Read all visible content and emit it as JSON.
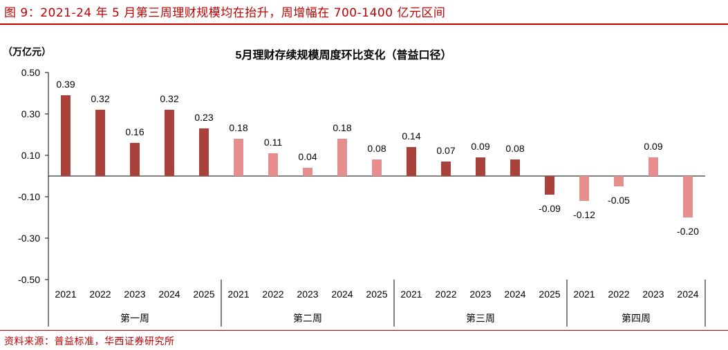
{
  "figure": {
    "title": "图 9：2021-24 年 5 月第三周理财规模均在抬升，周增幅在 700-1400 亿元区间",
    "source": "资料来源：普益标准，华西证券研究所"
  },
  "chart_data": {
    "type": "bar",
    "title": "5月理财存续规模周度环比变化（普益口径）",
    "unit": "（万亿元）",
    "xlabel": "",
    "ylabel": "",
    "ylim": [
      -0.5,
      0.5
    ],
    "yticks": [
      "0.50",
      "0.30",
      "0.10",
      "-0.10",
      "-0.30",
      "-0.50"
    ],
    "ytick_values": [
      0.5,
      0.3,
      0.1,
      -0.1,
      -0.3,
      -0.5
    ],
    "grid": false,
    "legend": "none",
    "colors": {
      "dark": "#a8423a",
      "light": "#e68e8e"
    },
    "groups": [
      {
        "label": "第一周",
        "color": "dark",
        "categories": [
          "2021",
          "2022",
          "2023",
          "2024",
          "2025"
        ],
        "values": [
          0.39,
          0.32,
          0.16,
          0.32,
          0.23
        ],
        "labels": [
          "0.39",
          "0.32",
          "0.16",
          "0.32",
          "0.23"
        ]
      },
      {
        "label": "第二周",
        "color": "light",
        "categories": [
          "2021",
          "2022",
          "2023",
          "2024",
          "2025"
        ],
        "values": [
          0.18,
          0.11,
          0.04,
          0.18,
          0.08
        ],
        "labels": [
          "0.18",
          "0.11",
          "0.04",
          "0.18",
          "0.08"
        ]
      },
      {
        "label": "第三周",
        "color": "dark",
        "categories": [
          "2021",
          "2022",
          "2023",
          "2024",
          "2025"
        ],
        "values": [
          0.14,
          0.07,
          0.09,
          0.08,
          -0.09
        ],
        "labels": [
          "0.14",
          "0.07",
          "0.09",
          "0.08",
          "-0.09"
        ]
      },
      {
        "label": "第四周",
        "color": "light",
        "categories": [
          "2021",
          "2022",
          "2023",
          "2024"
        ],
        "values": [
          -0.12,
          -0.05,
          0.09,
          -0.2
        ],
        "labels": [
          "-0.12",
          "-0.05",
          "0.09",
          "-0.20"
        ]
      }
    ]
  }
}
